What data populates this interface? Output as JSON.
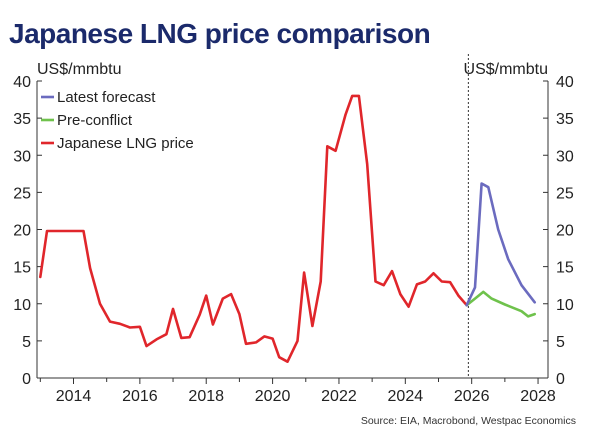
{
  "chart_data": {
    "type": "line",
    "title": "Japanese LNG price comparison",
    "left_unit": "US$/mmbtu",
    "right_unit": "US$/mmbtu",
    "xlim": [
      2012.9,
      2028.3
    ],
    "ylim": [
      0,
      40
    ],
    "y_ticks": [
      0,
      5,
      10,
      15,
      20,
      25,
      30,
      35,
      40
    ],
    "x_ticks": [
      2014,
      2016,
      2018,
      2020,
      2022,
      2024,
      2026,
      2028
    ],
    "x_tick_labels": [
      "2014",
      "2016",
      "2018",
      "2020",
      "2022",
      "2024",
      "2026",
      "2028"
    ],
    "forecast_divider_x": 2025.9,
    "grid": false,
    "legend_position": "top-left",
    "source": "Source: EIA, Macrobond, Westpac Economics",
    "series": [
      {
        "name": "Latest forecast",
        "color": "#6b6bbf",
        "points": [
          [
            2025.85,
            9.8
          ],
          [
            2026.1,
            12.2
          ],
          [
            2026.3,
            26.2
          ],
          [
            2026.5,
            25.7
          ],
          [
            2026.8,
            20.0
          ],
          [
            2027.1,
            16.0
          ],
          [
            2027.5,
            12.5
          ],
          [
            2027.9,
            10.2
          ]
        ]
      },
      {
        "name": "Pre-conflict",
        "color": "#6fc24c",
        "points": [
          [
            2025.85,
            9.8
          ],
          [
            2026.1,
            10.7
          ],
          [
            2026.35,
            11.6
          ],
          [
            2026.6,
            10.7
          ],
          [
            2027.0,
            9.9
          ],
          [
            2027.5,
            9.0
          ],
          [
            2027.7,
            8.3
          ],
          [
            2027.9,
            8.6
          ]
        ]
      },
      {
        "name": "Japanese LNG price",
        "color": "#e0262b",
        "points": [
          [
            2013.0,
            13.6
          ],
          [
            2013.2,
            19.8
          ],
          [
            2013.5,
            19.8
          ],
          [
            2013.8,
            19.8
          ],
          [
            2014.1,
            19.8
          ],
          [
            2014.3,
            19.8
          ],
          [
            2014.5,
            14.8
          ],
          [
            2014.8,
            10.0
          ],
          [
            2015.1,
            7.6
          ],
          [
            2015.4,
            7.3
          ],
          [
            2015.7,
            6.8
          ],
          [
            2016.0,
            6.9
          ],
          [
            2016.2,
            4.3
          ],
          [
            2016.5,
            5.2
          ],
          [
            2016.8,
            5.9
          ],
          [
            2017.0,
            9.3
          ],
          [
            2017.25,
            5.4
          ],
          [
            2017.5,
            5.5
          ],
          [
            2017.8,
            8.5
          ],
          [
            2018.0,
            11.1
          ],
          [
            2018.2,
            7.2
          ],
          [
            2018.5,
            10.7
          ],
          [
            2018.75,
            11.3
          ],
          [
            2019.0,
            8.6
          ],
          [
            2019.2,
            4.6
          ],
          [
            2019.5,
            4.8
          ],
          [
            2019.75,
            5.6
          ],
          [
            2020.0,
            5.3
          ],
          [
            2020.2,
            2.8
          ],
          [
            2020.45,
            2.2
          ],
          [
            2020.75,
            5.0
          ],
          [
            2020.95,
            14.2
          ],
          [
            2021.2,
            7.0
          ],
          [
            2021.45,
            13.0
          ],
          [
            2021.65,
            31.2
          ],
          [
            2021.9,
            30.6
          ],
          [
            2022.2,
            35.5
          ],
          [
            2022.4,
            38.0
          ],
          [
            2022.6,
            38.0
          ],
          [
            2022.85,
            28.8
          ],
          [
            2023.1,
            13.0
          ],
          [
            2023.35,
            12.5
          ],
          [
            2023.6,
            14.4
          ],
          [
            2023.85,
            11.3
          ],
          [
            2024.1,
            9.6
          ],
          [
            2024.35,
            12.6
          ],
          [
            2024.6,
            13.0
          ],
          [
            2024.85,
            14.1
          ],
          [
            2025.1,
            13.0
          ],
          [
            2025.35,
            12.9
          ],
          [
            2025.6,
            11.1
          ],
          [
            2025.85,
            9.8
          ]
        ]
      }
    ]
  }
}
